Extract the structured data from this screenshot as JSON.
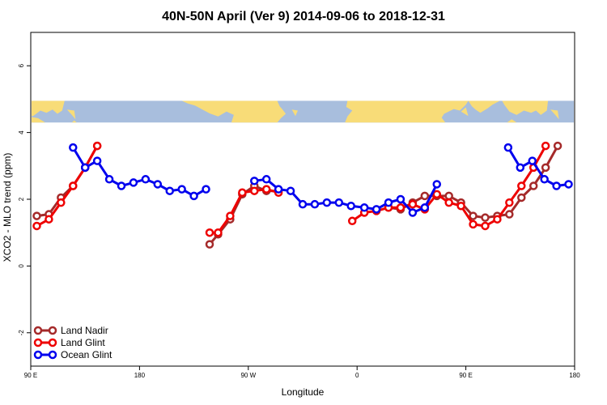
{
  "chart_data": {
    "type": "line",
    "title": "40N-50N April (Ver 9)   2014-09-06 to 2018-12-31",
    "xlabel": "Longitude",
    "ylabel": "XCO2 - MLO trend (ppm)",
    "x_ticks": [
      {
        "value": 90,
        "label": "90 E"
      },
      {
        "value": 180,
        "label": "180"
      },
      {
        "value": 270,
        "label": "90 W"
      },
      {
        "value": 360,
        "label": "0"
      },
      {
        "value": 450,
        "label": "90 E"
      },
      {
        "value": 540,
        "label": "180"
      }
    ],
    "y_ticks": [
      {
        "value": -2,
        "label": "-2"
      },
      {
        "value": 0,
        "label": "0"
      },
      {
        "value": 2,
        "label": "2"
      },
      {
        "value": 4,
        "label": "4"
      },
      {
        "value": 6,
        "label": "6"
      }
    ],
    "xlim": [
      90,
      540
    ],
    "ylim": [
      -3,
      7
    ],
    "map_band": {
      "ymin": 4.3,
      "ymax": 4.95,
      "ocean_color": "#a8bedd",
      "land_color": "#f8dc78"
    },
    "legend_position": "bottom-left",
    "series": [
      {
        "name": "Land Nadir",
        "color": "#a52a2a",
        "segments": [
          [
            [
              95,
              1.5
            ],
            [
              105,
              1.55
            ],
            [
              115,
              2.05
            ],
            [
              125,
              2.4
            ],
            [
              135,
              2.95
            ],
            [
              145,
              3.6
            ]
          ],
          [
            [
              238,
              0.65
            ],
            [
              245,
              0.95
            ],
            [
              255,
              1.4
            ],
            [
              265,
              2.15
            ],
            [
              275,
              2.4
            ],
            [
              285,
              2.25
            ],
            [
              295,
              2.25
            ]
          ],
          [
            [
              386,
              1.75
            ],
            [
              396,
              1.7
            ],
            [
              406,
              1.9
            ],
            [
              416,
              2.1
            ],
            [
              426,
              2.1
            ],
            [
              436,
              2.1
            ],
            [
              446,
              1.9
            ],
            [
              456,
              1.5
            ],
            [
              466,
              1.45
            ],
            [
              476,
              1.5
            ],
            [
              486,
              1.55
            ],
            [
              496,
              2.05
            ],
            [
              506,
              2.4
            ],
            [
              516,
              2.95
            ],
            [
              526,
              3.6
            ]
          ]
        ]
      },
      {
        "name": "Land Glint",
        "color": "#ee0000",
        "segments": [
          [
            [
              95,
              1.2
            ],
            [
              105,
              1.4
            ],
            [
              115,
              1.9
            ],
            [
              125,
              2.4
            ],
            [
              135,
              2.95
            ],
            [
              145,
              3.6
            ]
          ],
          [
            [
              238,
              1.0
            ],
            [
              245,
              1.0
            ],
            [
              255,
              1.5
            ],
            [
              265,
              2.2
            ],
            [
              275,
              2.25
            ],
            [
              285,
              2.3
            ],
            [
              295,
              2.2
            ]
          ],
          [
            [
              356,
              1.35
            ],
            [
              366,
              1.6
            ],
            [
              376,
              1.65
            ],
            [
              386,
              1.75
            ],
            [
              396,
              1.75
            ],
            [
              406,
              1.85
            ],
            [
              416,
              1.7
            ],
            [
              426,
              2.15
            ],
            [
              436,
              1.9
            ],
            [
              446,
              1.8
            ],
            [
              456,
              1.25
            ],
            [
              466,
              1.2
            ],
            [
              476,
              1.4
            ],
            [
              486,
              1.9
            ],
            [
              496,
              2.4
            ],
            [
              506,
              2.95
            ],
            [
              516,
              3.6
            ]
          ]
        ]
      },
      {
        "name": "Ocean Glint",
        "color": "#0000ee",
        "segments": [
          [
            [
              125,
              3.55
            ],
            [
              135,
              2.95
            ],
            [
              145,
              3.15
            ],
            [
              155,
              2.6
            ],
            [
              165,
              2.4
            ],
            [
              175,
              2.5
            ],
            [
              185,
              2.6
            ],
            [
              195,
              2.45
            ],
            [
              205,
              2.25
            ],
            [
              215,
              2.3
            ],
            [
              225,
              2.1
            ],
            [
              235,
              2.3
            ]
          ],
          [
            [
              275,
              2.55
            ],
            [
              285,
              2.6
            ],
            [
              295,
              2.3
            ],
            [
              305,
              2.25
            ],
            [
              315,
              1.85
            ],
            [
              325,
              1.85
            ],
            [
              335,
              1.9
            ],
            [
              345,
              1.9
            ],
            [
              355,
              1.8
            ],
            [
              366,
              1.75
            ],
            [
              376,
              1.7
            ],
            [
              386,
              1.9
            ],
            [
              396,
              2.0
            ],
            [
              406,
              1.6
            ],
            [
              416,
              1.75
            ],
            [
              426,
              2.45
            ]
          ],
          [
            [
              485,
              3.55
            ],
            [
              495,
              2.95
            ],
            [
              505,
              3.15
            ],
            [
              515,
              2.6
            ],
            [
              525,
              2.4
            ],
            [
              535,
              2.45
            ]
          ]
        ]
      }
    ]
  }
}
